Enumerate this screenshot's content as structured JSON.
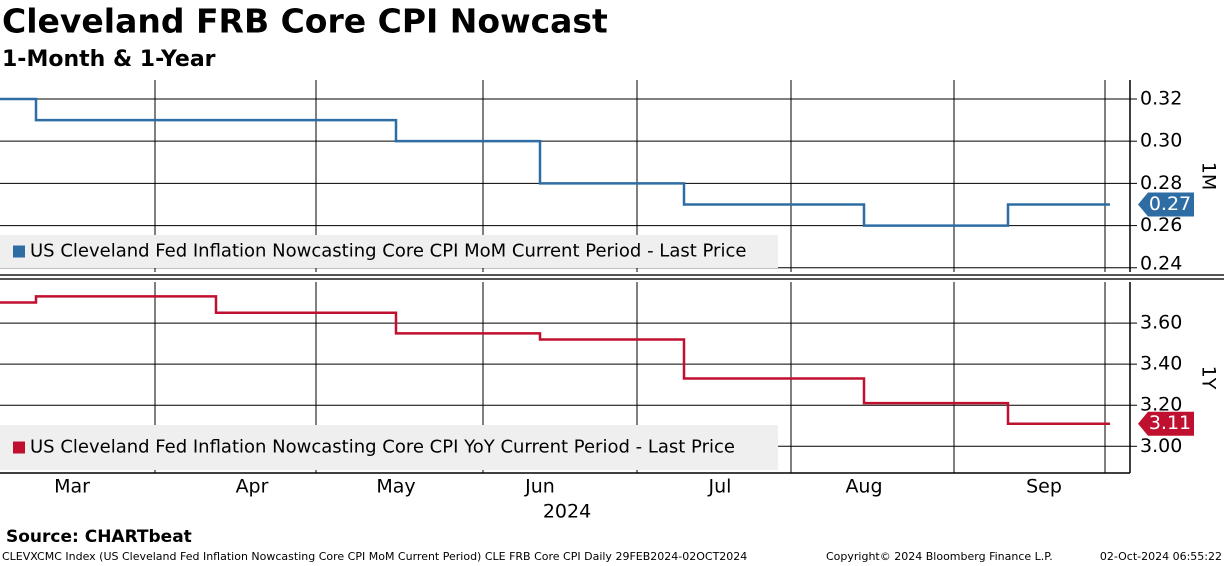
{
  "title": "Cleveland FRB Core CPI Nowcast",
  "subtitle": "1-Month & 1-Year",
  "chart_data": [
    {
      "type": "line",
      "step": true,
      "axis_label": "1M",
      "grid": true,
      "categories": [
        null,
        null,
        null,
        null,
        null,
        null,
        null,
        null,
        null,
        null,
        null,
        null,
        null,
        null,
        null,
        null,
        null,
        null,
        null,
        null,
        null,
        null,
        null,
        null,
        null,
        null,
        null,
        null,
        null,
        null,
        null
      ],
      "series": [
        {
          "name": "US Cleveland Fed Inflation Nowcasting Core CPI MoM Current Period - Last Price",
          "color": "#2e6da4",
          "values": [
            0.32,
            0.31,
            0.31,
            0.31,
            0.31,
            0.31,
            0.31,
            0.31,
            0.31,
            0.31,
            0.31,
            0.3,
            0.3,
            0.3,
            0.3,
            0.28,
            0.28,
            0.28,
            0.28,
            0.27,
            0.27,
            0.27,
            0.27,
            0.27,
            0.26,
            0.26,
            0.26,
            0.26,
            0.27,
            0.27,
            0.27
          ]
        }
      ],
      "ylim": [
        0.238,
        0.329
      ],
      "yticks": [
        0.24,
        0.26,
        0.28,
        {
          "value": 0.3,
          "label": "0.30"
        },
        0.32
      ]
    },
    {
      "type": "line",
      "step": true,
      "axis_label": "1Y",
      "grid": true,
      "categories": [
        null,
        null,
        "Mar",
        null,
        null,
        null,
        null,
        "Apr",
        null,
        null,
        null,
        "May",
        null,
        null,
        null,
        "Jun",
        null,
        null,
        null,
        null,
        "Jul",
        null,
        null,
        null,
        "Aug",
        null,
        null,
        null,
        null,
        "Sep",
        null
      ],
      "series": [
        {
          "name": "US Cleveland Fed Inflation Nowcasting Core CPI YoY Current Period - Last Price",
          "color": "#c0102f",
          "values": [
            3.7,
            3.73,
            3.73,
            3.73,
            3.73,
            3.73,
            3.65,
            3.65,
            3.65,
            3.65,
            3.65,
            3.55,
            3.55,
            3.55,
            3.55,
            3.52,
            3.52,
            3.52,
            3.52,
            3.33,
            3.33,
            3.33,
            3.33,
            3.33,
            3.21,
            3.21,
            3.21,
            3.21,
            3.11,
            3.11,
            3.11
          ]
        }
      ],
      "ylim": [
        2.87,
        3.8
      ],
      "yticks": [
        {
          "value": 3,
          "label": "3.00"
        },
        {
          "value": 3.2,
          "label": "3.20"
        },
        {
          "value": 3.4,
          "label": "3.40"
        },
        {
          "value": 3.6,
          "label": "3.60"
        }
      ]
    }
  ],
  "x_year": "2024",
  "source": "Source: CHARTbeat",
  "footer": {
    "ticker": "CLEVXCMC Index (US Cleveland Fed Inflation Nowcasting Core CPI MoM Current Period) CLE FRB Core CPI  Daily 29FEB2024-02OCT2024",
    "copyright": "Copyright© 2024 Bloomberg Finance L.P.",
    "timestamp": "02-Oct-2024 06:55:22"
  }
}
